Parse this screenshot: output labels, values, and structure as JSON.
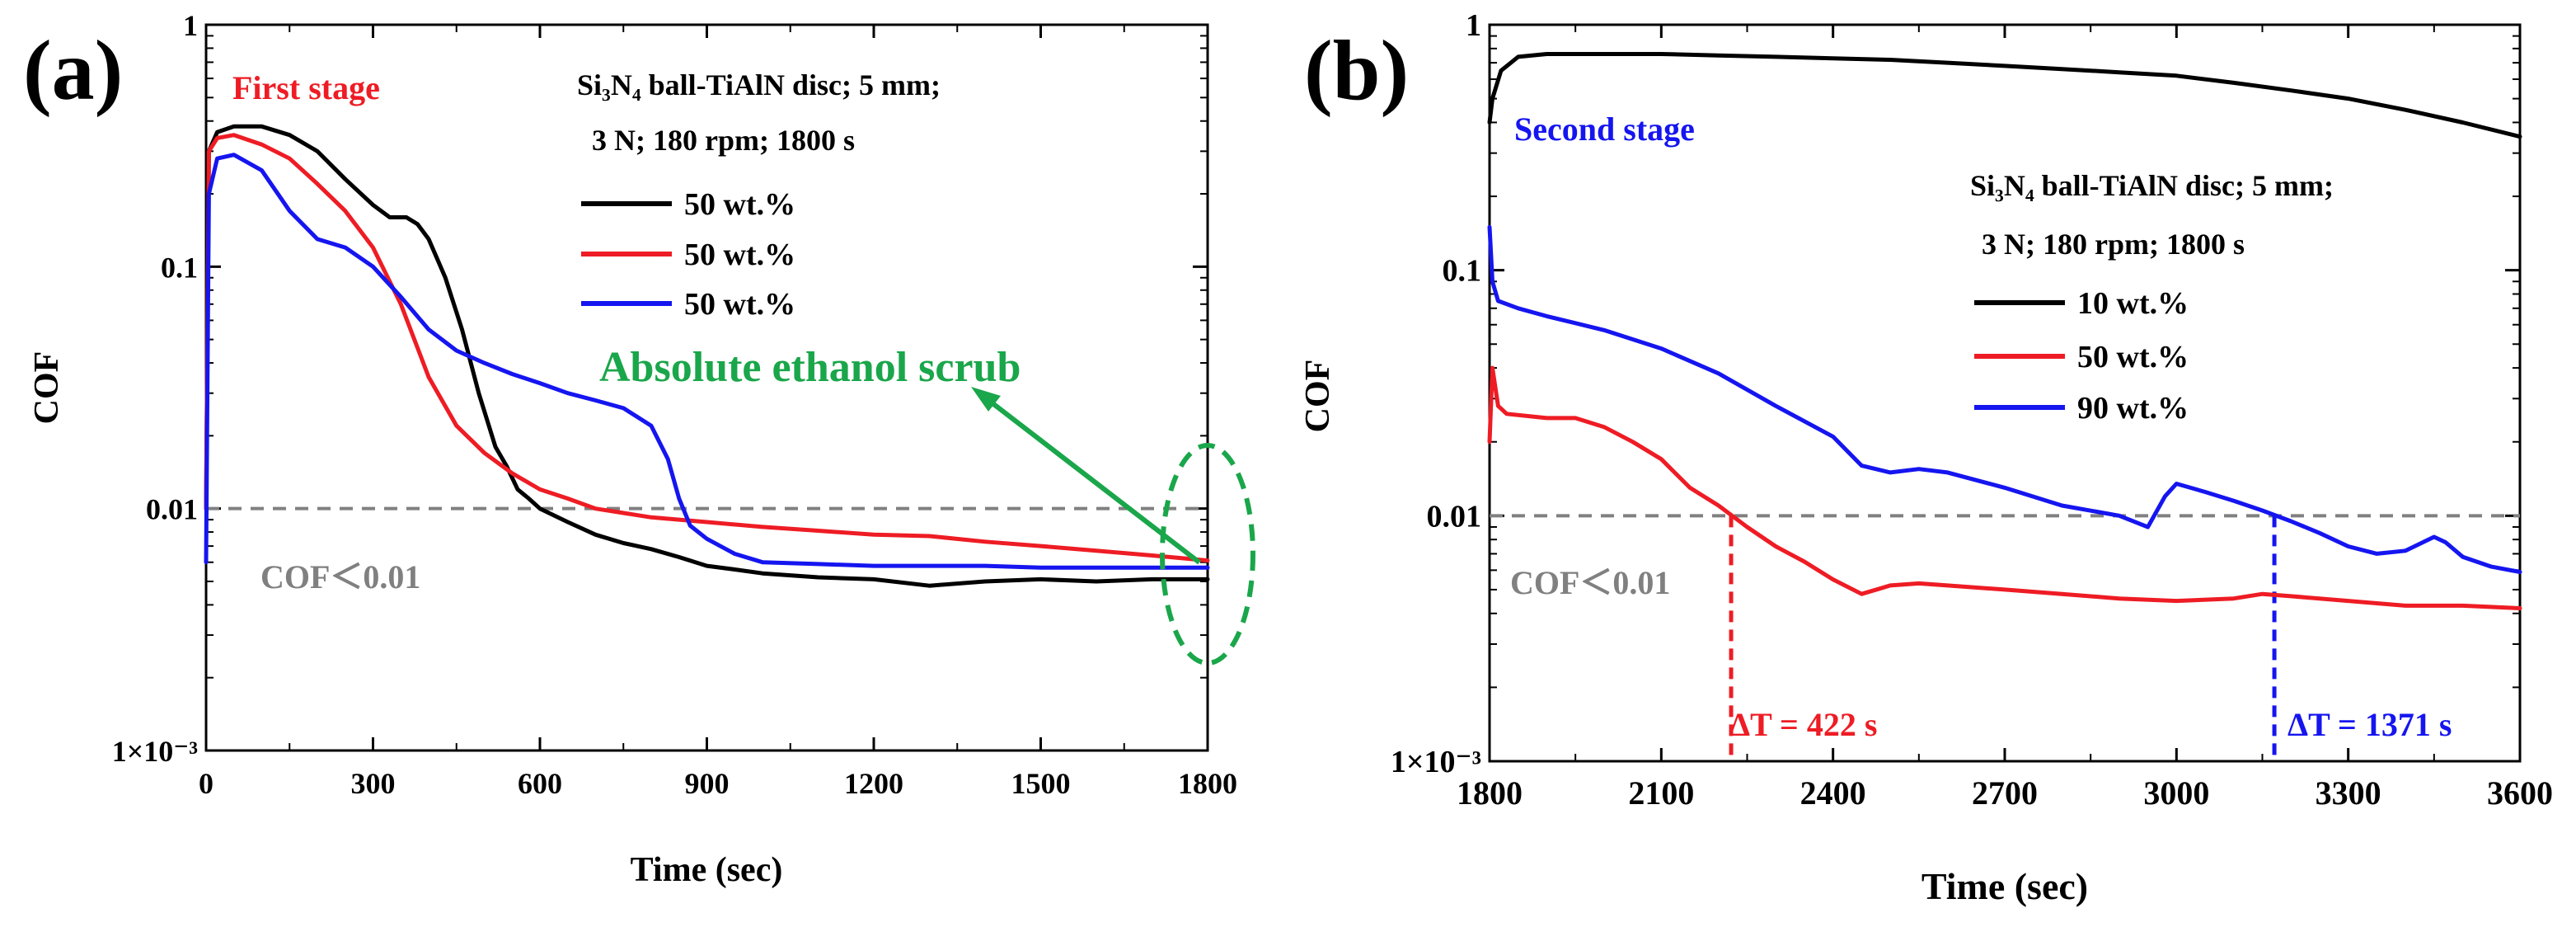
{
  "figure_labels": {
    "a": "(a)",
    "b": "(b)"
  },
  "chart_data": [
    {
      "type": "line",
      "panel": "(a)",
      "stage_label": "First stage",
      "stage_color": "#ee1c24",
      "title_line1": "Si₃N₄ ball-TiAlN disc; 5 mm;",
      "title_line2": "3 N; 180 rpm; 1800 s",
      "xlabel": "Time (sec)",
      "ylabel": "COF",
      "xlim": [
        0,
        1800
      ],
      "ylim": [
        0.001,
        1
      ],
      "yscale": "log",
      "xticks": [
        0,
        300,
        600,
        900,
        1200,
        1500,
        1800
      ],
      "xtick_labels": [
        "0",
        "300",
        "600",
        "900",
        "1200",
        "1500",
        "1800"
      ],
      "yticks": [
        0.001,
        0.01,
        0.1,
        1
      ],
      "ytick_labels": [
        "1×10⁻³",
        "0.01",
        "0.1",
        "1"
      ],
      "threshold": {
        "value": 0.01,
        "label": "COF＜0.01"
      },
      "annotation": {
        "text": "Absolute ethanol scrub",
        "color": "#1aa64a"
      },
      "series": [
        {
          "name": "50 wt.%",
          "color": "#000000",
          "x": [
            0,
            5,
            20,
            50,
            100,
            150,
            200,
            250,
            300,
            330,
            360,
            380,
            400,
            430,
            460,
            490,
            520,
            540,
            560,
            580,
            600,
            650,
            700,
            750,
            800,
            850,
            900,
            950,
            1000,
            1100,
            1200,
            1300,
            1400,
            1500,
            1600,
            1700,
            1800
          ],
          "y": [
            0.01,
            0.3,
            0.36,
            0.38,
            0.38,
            0.35,
            0.3,
            0.23,
            0.18,
            0.16,
            0.16,
            0.15,
            0.13,
            0.09,
            0.055,
            0.03,
            0.018,
            0.015,
            0.012,
            0.011,
            0.01,
            0.0088,
            0.0078,
            0.0072,
            0.0068,
            0.0063,
            0.0058,
            0.0056,
            0.0054,
            0.0052,
            0.0051,
            0.0048,
            0.005,
            0.0051,
            0.005,
            0.0051,
            0.0051
          ]
        },
        {
          "name": "50 wt.%",
          "color": "#ee1c24",
          "x": [
            0,
            5,
            20,
            50,
            100,
            150,
            200,
            250,
            300,
            350,
            400,
            450,
            500,
            550,
            600,
            650,
            700,
            800,
            900,
            1000,
            1100,
            1200,
            1300,
            1400,
            1500,
            1600,
            1700,
            1800
          ],
          "y": [
            0.01,
            0.3,
            0.34,
            0.35,
            0.32,
            0.28,
            0.22,
            0.17,
            0.12,
            0.07,
            0.035,
            0.022,
            0.017,
            0.014,
            0.012,
            0.011,
            0.01,
            0.0092,
            0.0088,
            0.0084,
            0.0081,
            0.0078,
            0.0077,
            0.0073,
            0.007,
            0.0067,
            0.0064,
            0.0061
          ]
        },
        {
          "name": "50 wt.%",
          "color": "#1515f0",
          "x": [
            0,
            5,
            20,
            50,
            100,
            150,
            200,
            250,
            300,
            350,
            400,
            450,
            500,
            550,
            600,
            650,
            700,
            750,
            800,
            830,
            850,
            870,
            900,
            950,
            1000,
            1100,
            1200,
            1300,
            1400,
            1500,
            1600,
            1700,
            1800
          ],
          "y": [
            0.006,
            0.2,
            0.28,
            0.29,
            0.25,
            0.17,
            0.13,
            0.12,
            0.1,
            0.075,
            0.055,
            0.045,
            0.04,
            0.036,
            0.033,
            0.03,
            0.028,
            0.026,
            0.022,
            0.016,
            0.011,
            0.0085,
            0.0075,
            0.0065,
            0.006,
            0.0059,
            0.0058,
            0.0058,
            0.0058,
            0.0057,
            0.0057,
            0.0057,
            0.0057
          ]
        }
      ]
    },
    {
      "type": "line",
      "panel": "(b)",
      "stage_label": "Second stage",
      "stage_color": "#1515f0",
      "title_line1": "Si₃N₄ ball-TiAlN disc; 5 mm;",
      "title_line2": "3 N; 180 rpm; 1800 s",
      "xlabel": "Time (sec)",
      "ylabel": "COF",
      "xlim": [
        1800,
        3600
      ],
      "ylim": [
        0.001,
        1
      ],
      "yscale": "log",
      "xticks": [
        1800,
        2100,
        2400,
        2700,
        3000,
        3300,
        3600
      ],
      "xtick_labels": [
        "1800",
        "2100",
        "2400",
        "2700",
        "3000",
        "3300",
        "3600"
      ],
      "yticks": [
        0.001,
        0.01,
        0.1,
        1
      ],
      "ytick_labels": [
        "1×10⁻³",
        "0.01",
        "0.1",
        "1"
      ],
      "threshold": {
        "value": 0.01,
        "label": "COF＜0.01"
      },
      "markers": [
        {
          "x": 2222,
          "label": "ΔT = 422 s",
          "color": "#ee1c24"
        },
        {
          "x": 3171,
          "label": "ΔT = 1371 s",
          "color": "#1515f0"
        }
      ],
      "series": [
        {
          "name": "10 wt.%",
          "color": "#000000",
          "x": [
            1800,
            1805,
            1820,
            1850,
            1900,
            2000,
            2100,
            2200,
            2300,
            2400,
            2500,
            2600,
            2700,
            2800,
            2900,
            3000,
            3100,
            3200,
            3300,
            3400,
            3500,
            3600
          ],
          "y": [
            0.4,
            0.5,
            0.65,
            0.74,
            0.76,
            0.76,
            0.76,
            0.75,
            0.74,
            0.73,
            0.72,
            0.7,
            0.68,
            0.66,
            0.64,
            0.62,
            0.58,
            0.54,
            0.5,
            0.45,
            0.4,
            0.35
          ]
        },
        {
          "name": "50 wt.%",
          "color": "#ee1c24",
          "x": [
            1800,
            1805,
            1815,
            1830,
            1900,
            1950,
            2000,
            2050,
            2100,
            2150,
            2200,
            2250,
            2300,
            2350,
            2400,
            2450,
            2500,
            2550,
            2600,
            2700,
            2800,
            2900,
            3000,
            3100,
            3150,
            3200,
            3300,
            3400,
            3500,
            3600
          ],
          "y": [
            0.02,
            0.04,
            0.028,
            0.026,
            0.025,
            0.025,
            0.023,
            0.02,
            0.017,
            0.013,
            0.011,
            0.009,
            0.0075,
            0.0065,
            0.0055,
            0.0048,
            0.0052,
            0.0053,
            0.0052,
            0.005,
            0.0048,
            0.0046,
            0.0045,
            0.0046,
            0.0048,
            0.0047,
            0.0045,
            0.0043,
            0.0043,
            0.0042
          ]
        },
        {
          "name": "90 wt.%",
          "color": "#1515f0",
          "x": [
            1800,
            1805,
            1815,
            1850,
            1900,
            2000,
            2100,
            2200,
            2300,
            2400,
            2450,
            2500,
            2550,
            2600,
            2700,
            2800,
            2900,
            2950,
            2980,
            3000,
            3050,
            3100,
            3150,
            3200,
            3250,
            3300,
            3350,
            3400,
            3450,
            3470,
            3500,
            3550,
            3600
          ],
          "y": [
            0.15,
            0.09,
            0.075,
            0.07,
            0.065,
            0.057,
            0.048,
            0.038,
            0.028,
            0.021,
            0.016,
            0.015,
            0.0155,
            0.015,
            0.013,
            0.011,
            0.01,
            0.009,
            0.012,
            0.0135,
            0.0125,
            0.0115,
            0.0105,
            0.0095,
            0.0085,
            0.0075,
            0.007,
            0.0072,
            0.0082,
            0.0078,
            0.0068,
            0.0062,
            0.0059
          ]
        }
      ]
    }
  ]
}
